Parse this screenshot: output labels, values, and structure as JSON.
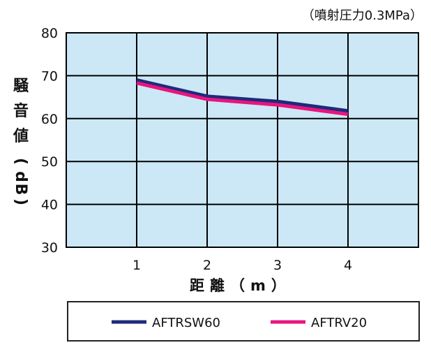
{
  "chart_data": {
    "type": "line",
    "annotation": "（噴射圧力0.3MPa）",
    "xlabel": "距離（m）",
    "ylabel": "騒音値（dB）",
    "x": [
      1,
      2,
      3,
      4
    ],
    "x_ticks": [
      "1",
      "2",
      "3",
      "4"
    ],
    "y_ticks": [
      "30",
      "40",
      "50",
      "60",
      "70",
      "80"
    ],
    "xlim": [
      0,
      5
    ],
    "ylim": [
      30,
      80
    ],
    "grid": true,
    "legend_position": "bottom",
    "series": [
      {
        "name": "AFTRSW60",
        "values": [
          69,
          65.2,
          64,
          61.8
        ],
        "color": "#1f2a7a"
      },
      {
        "name": "AFTRV20",
        "values": [
          68.3,
          64.5,
          63.2,
          61
        ],
        "color": "#e8157f"
      }
    ],
    "plot_background": "#cce8f6"
  }
}
